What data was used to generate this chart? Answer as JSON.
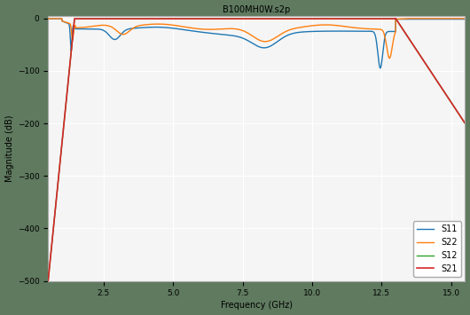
{
  "title": "B100MH0W.s2p",
  "xlabel": "Frequency (GHz)",
  "ylabel": "Magnitude (dB)",
  "ylim": [
    -500,
    5
  ],
  "xlim": [
    0.5,
    15.5
  ],
  "yticks": [
    0,
    -100,
    -200,
    -300,
    -400,
    -500
  ],
  "xtick_step": 2.5,
  "colors": {
    "S11": "#1f77b4",
    "S22": "#ff7f0e",
    "S12": "#2ca02c",
    "S21": "#d62728"
  },
  "fig_background": "#5f7a5f",
  "plot_background": "#f5f5f5",
  "grid_color": "#ffffff",
  "title_fontsize": 7,
  "label_fontsize": 7,
  "tick_fontsize": 6.5
}
